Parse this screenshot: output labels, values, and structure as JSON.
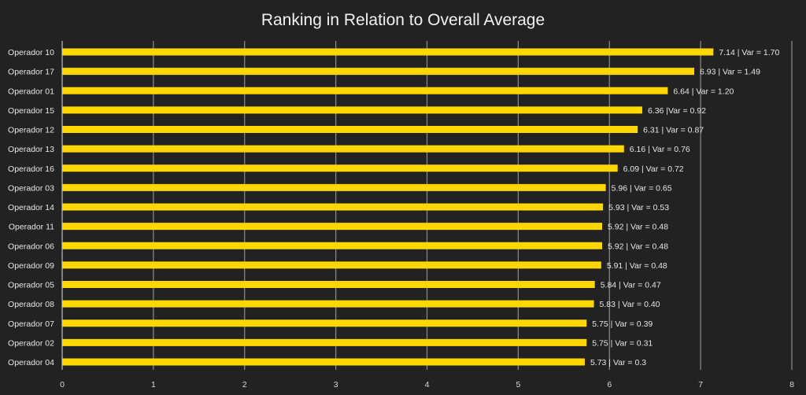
{
  "chart_data": {
    "type": "bar",
    "orientation": "horizontal",
    "title": "Ranking in Relation to Overall Average",
    "xlabel": "",
    "ylabel": "",
    "xlim": [
      0,
      8
    ],
    "xticks": [
      "0",
      "1",
      "2",
      "3",
      "4",
      "5",
      "6",
      "7",
      "8"
    ],
    "grid": true,
    "legend": "none",
    "bar_color": "#ffd700",
    "background": "#222222",
    "categories": [
      "Operador 10",
      "Operador 17",
      "Operador 01",
      "Operador 15",
      "Operador 12",
      "Operador 13",
      "Operador 16",
      "Operador 03",
      "Operador 14",
      "Operador 11",
      "Operador 06",
      "Operador 09",
      "Operador 05",
      "Operador 08",
      "Operador 07",
      "Operador 02",
      "Operador 04"
    ],
    "values": [
      7.14,
      6.93,
      6.64,
      6.36,
      6.31,
      6.16,
      6.09,
      5.96,
      5.93,
      5.92,
      5.92,
      5.91,
      5.84,
      5.83,
      5.75,
      5.75,
      5.73
    ],
    "data_labels": [
      "7.14 | Var = 1.70",
      "6.93 | Var = 1.49",
      "6.64 | Var = 1.20",
      "6.36 |Var = 0.92",
      "6.31 | Var = 0.87",
      "6.16 | Var = 0.76",
      "6.09 | Var = 0.72",
      "5.96 | Var = 0.65",
      "5.93 | Var = 0.53",
      "5.92 | Var = 0.48",
      "5.92 | Var = 0.48",
      "5.91 | Var = 0.48",
      "5.84 | Var = 0.47",
      "5.83 | Var = 0.40",
      "5.75 | Var = 0.39",
      "5.75 | Var = 0.31",
      "5.73 | Var = 0.3"
    ]
  }
}
